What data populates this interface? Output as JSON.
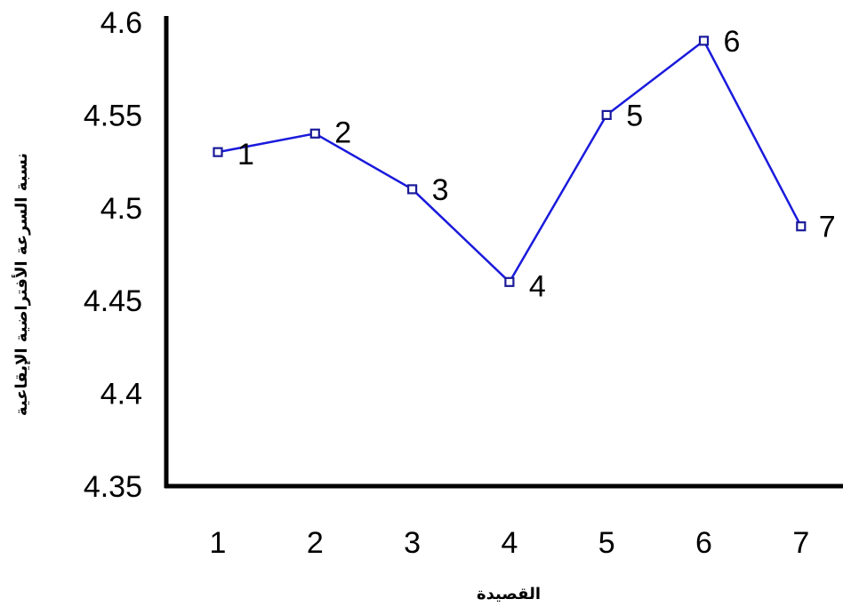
{
  "chart_data": {
    "type": "line",
    "x": [
      1,
      2,
      3,
      4,
      5,
      6,
      7
    ],
    "categories": [
      "1",
      "2",
      "3",
      "4",
      "5",
      "6",
      "7"
    ],
    "values": [
      4.53,
      4.54,
      4.51,
      4.46,
      4.55,
      4.59,
      4.49
    ],
    "point_labels": [
      "1",
      "2",
      "3",
      "4",
      "5",
      "6",
      "7"
    ],
    "xlabel": "القصيدة",
    "ylabel": "نسبة السرعة الأفتراضية الإيقاعية",
    "ylim": [
      4.35,
      4.6
    ],
    "yticks": [
      "4.35",
      "4.4",
      "4.45",
      "4.5",
      "4.55",
      "4.6"
    ],
    "grid": false,
    "legend": "none",
    "colors": {
      "line": "#1a1adc",
      "marker": "#1a1a9a",
      "axis": "#000000"
    }
  }
}
